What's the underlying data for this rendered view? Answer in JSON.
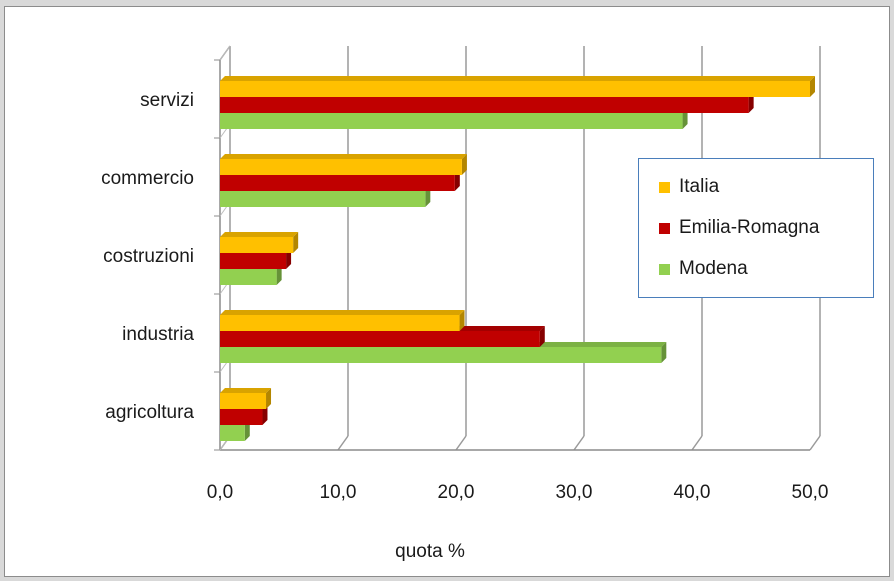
{
  "chart_data": {
    "type": "bar",
    "orientation": "horizontal",
    "categories": [
      "servizi",
      "commercio",
      "costruzioni",
      "industria",
      "agricoltura"
    ],
    "series": [
      {
        "name": "Italia",
        "color": "#ffc000",
        "values": [
          50.0,
          20.5,
          6.2,
          20.3,
          3.9
        ]
      },
      {
        "name": "Emilia-Romagna",
        "color": "#c00000",
        "values": [
          44.8,
          19.9,
          5.6,
          27.1,
          3.6
        ]
      },
      {
        "name": "Modena",
        "color": "#92d050",
        "values": [
          39.2,
          17.4,
          4.8,
          37.4,
          2.1
        ]
      }
    ],
    "xlabel": "quota %",
    "xlim": [
      0,
      50
    ],
    "xticks": [
      "0,0",
      "10,0",
      "20,0",
      "30,0",
      "40,0",
      "50,0"
    ],
    "grid": true,
    "style": "3d-bars",
    "legend_position": "right"
  }
}
